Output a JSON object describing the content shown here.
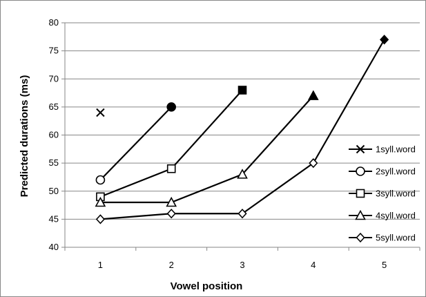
{
  "chart_data": {
    "type": "line",
    "xlabel": "Vowel position",
    "ylabel": "Predicted durations (ms)",
    "x": [
      1,
      2,
      3,
      4,
      5
    ],
    "xlim": [
      0.5,
      5.5
    ],
    "ylim": [
      40,
      80
    ],
    "yticks": [
      40,
      45,
      50,
      55,
      60,
      65,
      70,
      75,
      80
    ],
    "xticks": [
      1,
      2,
      3,
      4,
      5
    ],
    "grid": "horizontal",
    "legend_position": "right",
    "series": [
      {
        "name": "1syll.word",
        "marker": "x",
        "x": [
          1
        ],
        "values": [
          64
        ]
      },
      {
        "name": "2syll.word",
        "marker": "circle",
        "filled_last": true,
        "x": [
          1,
          2
        ],
        "values": [
          52,
          65
        ]
      },
      {
        "name": "3syll.word",
        "marker": "square",
        "filled_last": true,
        "x": [
          1,
          2,
          3
        ],
        "values": [
          49,
          54,
          68
        ]
      },
      {
        "name": "4syll.word",
        "marker": "triangle",
        "filled_last": true,
        "x": [
          1,
          2,
          3,
          4
        ],
        "values": [
          48,
          48,
          53,
          67
        ]
      },
      {
        "name": "5syll.word",
        "marker": "diamond",
        "filled_last": true,
        "x": [
          1,
          2,
          3,
          4,
          5
        ],
        "values": [
          45,
          46,
          46,
          55,
          77
        ]
      }
    ],
    "colors": {
      "line": "#000000",
      "grid": "#868686",
      "axis": "#868686"
    }
  }
}
